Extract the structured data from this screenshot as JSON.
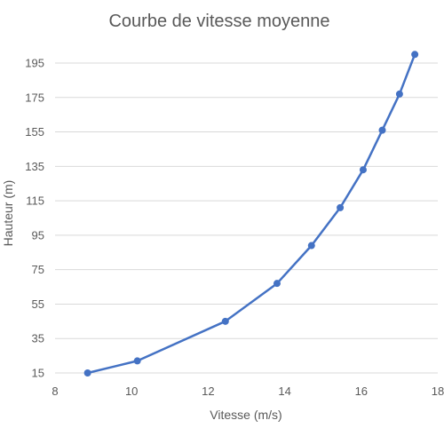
{
  "chart_data": {
    "type": "line",
    "title": "Courbe de vitesse moyenne",
    "xlabel": "Vitesse (m/s)",
    "ylabel": "Hauteur (m)",
    "xlim": [
      8,
      18
    ],
    "ylim": [
      15,
      200
    ],
    "x_ticks": [
      "8",
      "10",
      "12",
      "14",
      "16",
      "18"
    ],
    "y_ticks": [
      "15",
      "35",
      "55",
      "75",
      "95",
      "115",
      "135",
      "155",
      "175",
      "195"
    ],
    "grid": "horizontal",
    "legend": "none",
    "line_color": "#4472c4",
    "series": [
      {
        "x": [
          8.85,
          10.15,
          12.45,
          13.8,
          14.7,
          15.45,
          16.05,
          16.55,
          17.0,
          17.4
        ],
        "y": [
          15,
          22,
          45,
          67,
          89,
          111,
          133,
          156,
          177,
          200
        ]
      }
    ]
  }
}
